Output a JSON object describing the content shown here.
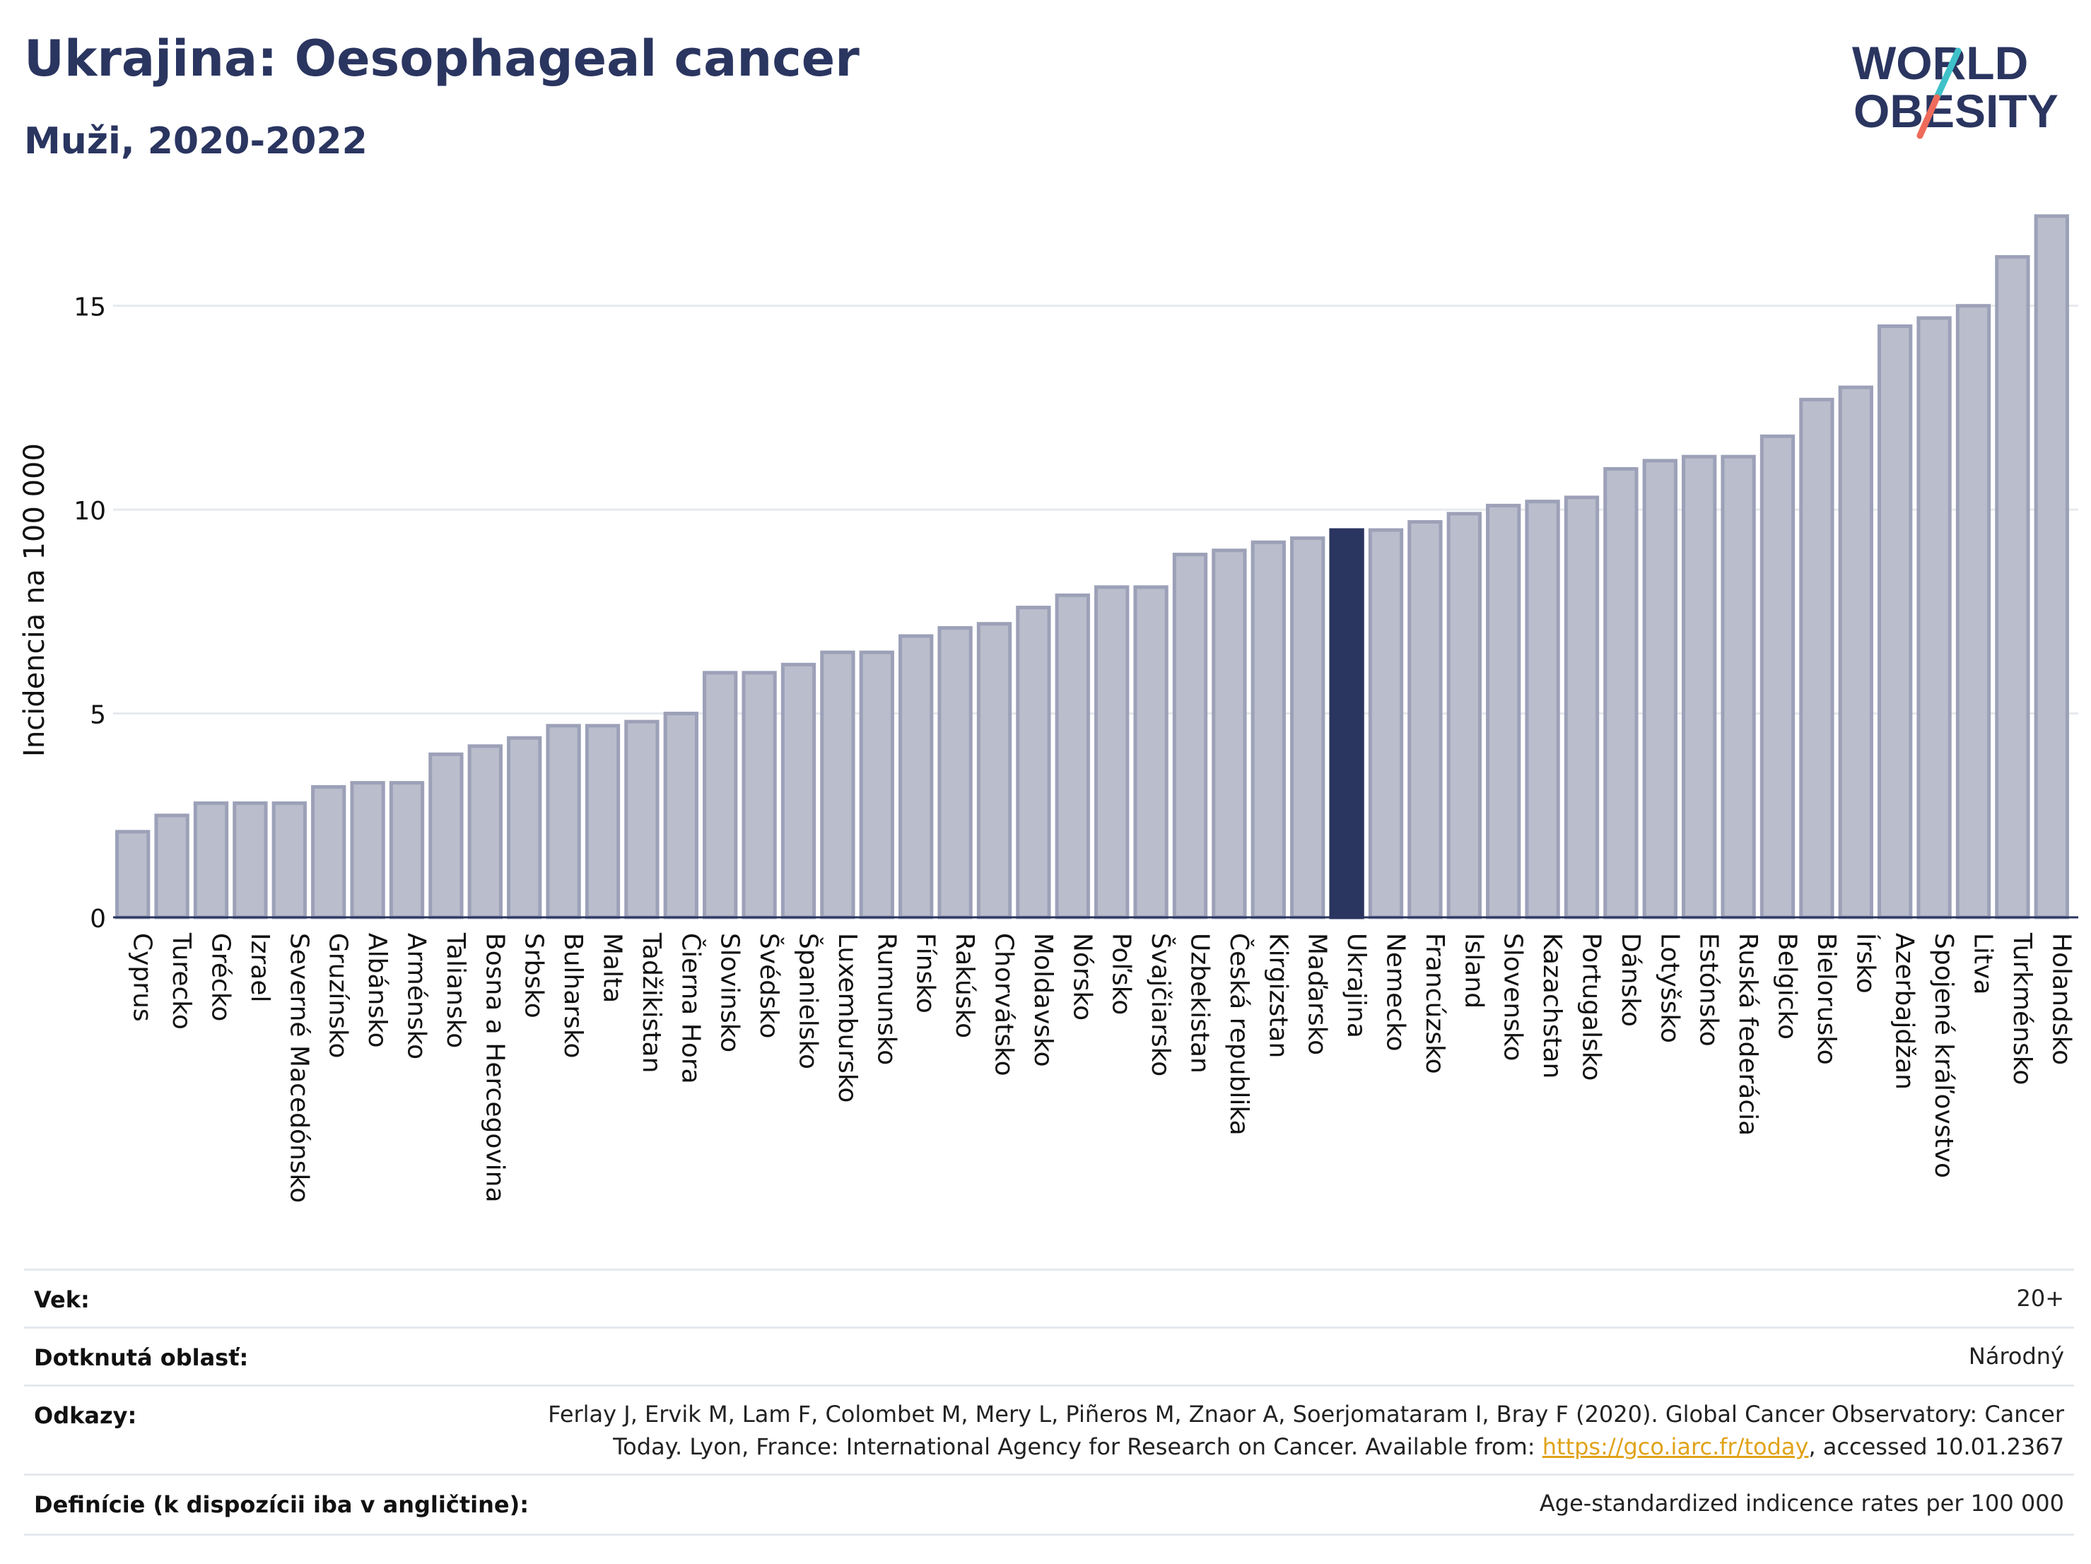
{
  "header": {
    "title": "Ukrajina: Oesophageal cancer",
    "subtitle": "Muži, 2020-2022",
    "logo_top": "WORLD",
    "logo_bottom": "OBESITY"
  },
  "chart_data": {
    "type": "bar",
    "title": "Ukrajina: Oesophageal cancer",
    "subtitle": "Muži, 2020-2022",
    "ylabel": "Incidencia na 100 000",
    "ylim": [
      0,
      17.3
    ],
    "yticks": [
      0,
      5,
      10,
      15
    ],
    "highlight": "Ukrajina",
    "colors": {
      "bar": "#b9bdcc",
      "bar_border": "#9ca1b8",
      "highlight": "#2a3560",
      "grid": "#e6e9ee"
    },
    "categories": [
      "Cyprus",
      "Turecko",
      "Grécko",
      "Izrael",
      "Severné Macedónsko",
      "Gruzínsko",
      "Albánsko",
      "Arménsko",
      "Taliansko",
      "Bosna a Hercegovina",
      "Srbsko",
      "Bulharsko",
      "Malta",
      "Tadžikistan",
      "Čierna Hora",
      "Slovinsko",
      "Švédsko",
      "Španielsko",
      "Luxembursko",
      "Rumunsko",
      "Fínsko",
      "Rakúsko",
      "Chorvátsko",
      "Moldavsko",
      "Nórsko",
      "Poľsko",
      "Švajčiarsko",
      "Uzbekistan",
      "Česká republika",
      "Kirgizstan",
      "Maďarsko",
      "Ukrajina",
      "Nemecko",
      "Francúzsko",
      "Island",
      "Slovensko",
      "Kazachstan",
      "Portugalsko",
      "Dánsko",
      "Lotyšsko",
      "Estónsko",
      "Ruská federácia",
      "Belgicko",
      "Bielorusko",
      "Írsko",
      "Azerbajdžan",
      "Spojené kráľovstvo",
      "Litva",
      "Turkménsko",
      "Holandsko"
    ],
    "values": [
      2.1,
      2.5,
      2.8,
      2.8,
      2.8,
      3.2,
      3.3,
      3.3,
      4.0,
      4.2,
      4.4,
      4.7,
      4.7,
      4.8,
      5.0,
      6.0,
      6.0,
      6.2,
      6.5,
      6.5,
      6.9,
      7.1,
      7.2,
      7.6,
      7.9,
      8.1,
      8.1,
      8.9,
      9.0,
      9.2,
      9.3,
      9.5,
      9.5,
      9.7,
      9.9,
      10.1,
      10.2,
      10.3,
      11.0,
      11.2,
      11.3,
      11.3,
      11.8,
      12.7,
      13.0,
      14.5,
      14.7,
      15.0,
      16.2,
      17.2
    ]
  },
  "meta": {
    "age_label": "Vek:",
    "age_value": "20+",
    "area_label": "Dotknutá oblasť:",
    "area_value": "Národný",
    "refs_label": "Odkazy:",
    "refs_line1": "Ferlay J, Ervik M, Lam F, Colombet M, Mery L, Piñeros M, Znaor A, Soerjomataram I, Bray F (2020). Global Cancer Observatory: Cancer",
    "refs_line2_pre": "Today. Lyon, France: International Agency for Research on Cancer. Available from: ",
    "refs_link": "https://gco.iarc.fr/today",
    "refs_line2_post": ", accessed 10.01.2367",
    "def_label": "Definície (k dispozícii iba v angličtine):",
    "def_value": "Age-standardized indicence rates per 100 000"
  }
}
